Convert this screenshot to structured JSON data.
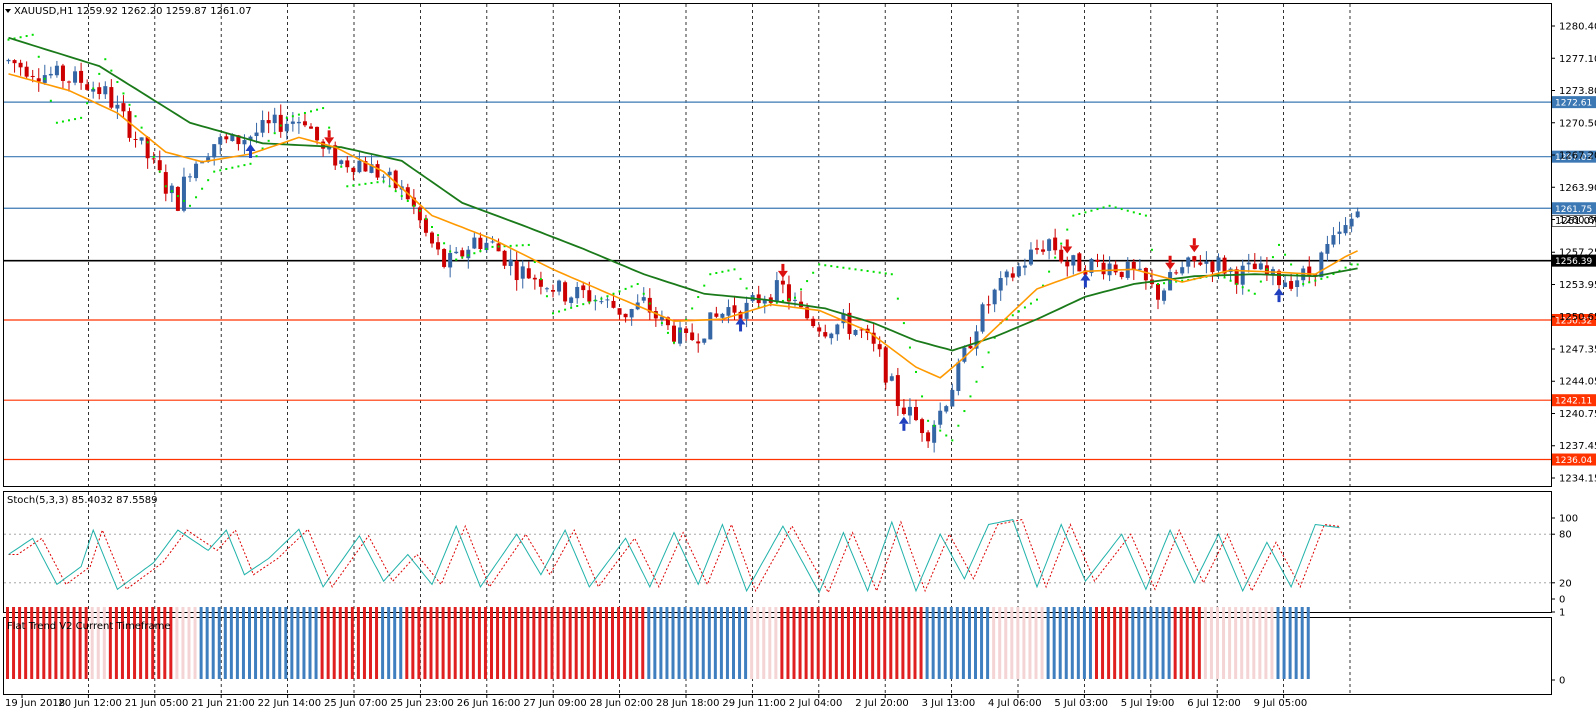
{
  "main_title": "XAUUSD,H1  1259.92 1262.20 1259.87 1261.07",
  "stoch_title": "Stoch(5,3,3) 85.4032 87.5589",
  "flat_title": "Flat Trend V2 Current Timeframe",
  "colors": {
    "bull": "#3465a4",
    "bear": "#cc0000",
    "ma_fast": "#ff9900",
    "ma_slow": "#1a7a1a",
    "sar": "#00e000",
    "stoch_main": "#20b2aa",
    "stoch_signal": "#dd0000",
    "hline_blue": "#3c78b4",
    "hline_red": "#ff3300",
    "hline_black": "#000000",
    "trend_up": "#3f7fbf",
    "trend_down": "#e02020"
  },
  "chart_data": {
    "type": "candlestick",
    "symbol": "XAUUSD",
    "timeframe": "H1",
    "current_price": "1261.07",
    "y_ticks": [
      "1280.40",
      "1277.10",
      "1273.80",
      "1270.50",
      "1267.20",
      "1263.90",
      "1260.60",
      "1257.25",
      "1253.95",
      "1250.65",
      "1247.35",
      "1244.05",
      "1240.75",
      "1237.45",
      "1234.15"
    ],
    "x_ticks": [
      "19 Jun 2018",
      "20 Jun 12:00",
      "21 Jun 05:00",
      "21 Jun 21:00",
      "22 Jun 14:00",
      "25 Jun 07:00",
      "25 Jun 23:00",
      "26 Jun 16:00",
      "27 Jun 09:00",
      "28 Jun 02:00",
      "28 Jun 18:00",
      "29 Jun 11:00",
      "2 Jul 04:00",
      "2 Jul 20:00",
      "3 Jul 13:00",
      "4 Jul 06:00",
      "5 Jul 03:00",
      "5 Jul 19:00",
      "6 Jul 12:00",
      "9 Jul 05:00"
    ],
    "levels": [
      {
        "value": 1272.61,
        "label": "1272.61",
        "kind": "blue"
      },
      {
        "value": 1267.03,
        "label": "1267.03",
        "kind": "blue"
      },
      {
        "value": 1261.75,
        "label": "1261.75",
        "kind": "blue"
      },
      {
        "value": 1256.39,
        "label": "1256.39",
        "kind": "black"
      },
      {
        "value": 1250.32,
        "label": "1250.32",
        "kind": "red"
      },
      {
        "value": 1242.11,
        "label": "1242.11",
        "kind": "red"
      },
      {
        "value": 1236.04,
        "label": "1236.04",
        "kind": "red"
      }
    ],
    "price_path": [
      [
        0,
        1276.8
      ],
      [
        6,
        1275.5
      ],
      [
        12,
        1274.8
      ],
      [
        16,
        1273.5
      ],
      [
        20,
        1270
      ],
      [
        23,
        1267
      ],
      [
        26,
        1264
      ],
      [
        28,
        1262.5
      ],
      [
        30,
        1266
      ],
      [
        34,
        1268.5
      ],
      [
        37,
        1268.5
      ],
      [
        41,
        1269.5
      ],
      [
        45,
        1270.5
      ],
      [
        49,
        1271
      ],
      [
        52,
        1267.5
      ],
      [
        55,
        1266.5
      ],
      [
        58,
        1266.5
      ],
      [
        62,
        1265
      ],
      [
        66,
        1263
      ],
      [
        69,
        1259
      ],
      [
        72,
        1256
      ],
      [
        74,
        1256.5
      ],
      [
        77,
        1258.5
      ],
      [
        80,
        1258
      ],
      [
        84,
        1255.5
      ],
      [
        88,
        1254.5
      ],
      [
        92,
        1253
      ],
      [
        95,
        1253
      ],
      [
        99,
        1252
      ],
      [
        102,
        1251
      ],
      [
        105,
        1252
      ],
      [
        108,
        1250
      ],
      [
        112,
        1248
      ],
      [
        115,
        1249.5
      ],
      [
        119,
        1251.5
      ],
      [
        122,
        1251.5
      ],
      [
        125,
        1253
      ],
      [
        128,
        1253.5
      ],
      [
        131,
        1251
      ],
      [
        135,
        1249.5
      ],
      [
        138,
        1250
      ],
      [
        141,
        1249
      ],
      [
        144,
        1246.5
      ],
      [
        147,
        1242
      ],
      [
        150,
        1240
      ],
      [
        152,
        1239
      ],
      [
        154,
        1241
      ],
      [
        157,
        1245
      ],
      [
        160,
        1250
      ],
      [
        163,
        1253
      ],
      [
        166,
        1255
      ],
      [
        169,
        1257
      ],
      [
        172,
        1258.5
      ],
      [
        175,
        1256
      ],
      [
        179,
        1256
      ],
      [
        182,
        1256
      ],
      [
        186,
        1255
      ],
      [
        190,
        1253
      ],
      [
        193,
        1255
      ],
      [
        197,
        1256.5
      ],
      [
        200,
        1256
      ],
      [
        203,
        1255
      ],
      [
        206,
        1255.5
      ],
      [
        209,
        1254.5
      ],
      [
        212,
        1254.5
      ],
      [
        215,
        1255
      ],
      [
        218,
        1257.5
      ],
      [
        221,
        1259.5
      ],
      [
        223,
        1261.5
      ]
    ],
    "ma_fast_path": [
      [
        0,
        1275.5
      ],
      [
        10,
        1273.8
      ],
      [
        18,
        1271.5
      ],
      [
        26,
        1267.5
      ],
      [
        32,
        1266.5
      ],
      [
        40,
        1267.3
      ],
      [
        48,
        1269
      ],
      [
        54,
        1268
      ],
      [
        62,
        1265.5
      ],
      [
        70,
        1261
      ],
      [
        80,
        1258.6
      ],
      [
        90,
        1255.5
      ],
      [
        100,
        1252.8
      ],
      [
        110,
        1250.2
      ],
      [
        118,
        1250.4
      ],
      [
        126,
        1251.9
      ],
      [
        134,
        1251.3
      ],
      [
        142,
        1249.2
      ],
      [
        150,
        1245.5
      ],
      [
        154,
        1244.4
      ],
      [
        158,
        1246.5
      ],
      [
        164,
        1250
      ],
      [
        170,
        1253.5
      ],
      [
        178,
        1255.3
      ],
      [
        186,
        1255.5
      ],
      [
        194,
        1254.2
      ],
      [
        202,
        1255.4
      ],
      [
        210,
        1255.2
      ],
      [
        216,
        1255
      ],
      [
        221,
        1256.8
      ],
      [
        223,
        1257.4
      ]
    ],
    "ma_slow_path": [
      [
        0,
        1279.2
      ],
      [
        15,
        1276.3
      ],
      [
        30,
        1270.5
      ],
      [
        42,
        1268.4
      ],
      [
        55,
        1268
      ],
      [
        65,
        1266.6
      ],
      [
        75,
        1262.3
      ],
      [
        85,
        1260
      ],
      [
        95,
        1257.6
      ],
      [
        105,
        1255
      ],
      [
        115,
        1253
      ],
      [
        125,
        1252.4
      ],
      [
        135,
        1251.5
      ],
      [
        143,
        1250
      ],
      [
        150,
        1248.2
      ],
      [
        156,
        1247.2
      ],
      [
        163,
        1248.6
      ],
      [
        170,
        1250.4
      ],
      [
        178,
        1252.7
      ],
      [
        186,
        1254
      ],
      [
        196,
        1254.8
      ],
      [
        206,
        1255
      ],
      [
        216,
        1254.8
      ],
      [
        223,
        1255.6
      ]
    ],
    "sar_path": [
      [
        0,
        1279
      ],
      [
        4,
        1279.5
      ],
      [
        8,
        1270.5
      ],
      [
        12,
        1271
      ],
      [
        16,
        1277
      ],
      [
        22,
        1270
      ],
      [
        26,
        1264
      ],
      [
        30,
        1262
      ],
      [
        34,
        1265.5
      ],
      [
        40,
        1266.3
      ],
      [
        46,
        1271
      ],
      [
        52,
        1272
      ],
      [
        56,
        1264
      ],
      [
        62,
        1264.5
      ],
      [
        68,
        1261.5
      ],
      [
        74,
        1256.5
      ],
      [
        80,
        1257.8
      ],
      [
        86,
        1258
      ],
      [
        90,
        1251
      ],
      [
        98,
        1252.5
      ],
      [
        104,
        1254
      ],
      [
        110,
        1248
      ],
      [
        116,
        1255
      ],
      [
        120,
        1255.5
      ],
      [
        124,
        1251.6
      ],
      [
        130,
        1252.6
      ],
      [
        134,
        1256
      ],
      [
        140,
        1255.5
      ],
      [
        146,
        1255
      ],
      [
        152,
        1240
      ],
      [
        156,
        1238
      ],
      [
        160,
        1244
      ],
      [
        164,
        1250
      ],
      [
        170,
        1252.4
      ],
      [
        176,
        1261
      ],
      [
        182,
        1262
      ],
      [
        188,
        1261
      ],
      [
        190,
        1254
      ],
      [
        196,
        1254.5
      ],
      [
        200,
        1255
      ],
      [
        206,
        1253
      ],
      [
        210,
        1258
      ],
      [
        214,
        1254
      ],
      [
        218,
        1254.7
      ],
      [
        222,
        1256
      ]
    ],
    "signals": [
      {
        "bar": 40,
        "dir": "up"
      },
      {
        "bar": 53,
        "dir": "down"
      },
      {
        "bar": 121,
        "dir": "up"
      },
      {
        "bar": 128,
        "dir": "down"
      },
      {
        "bar": 148,
        "dir": "up"
      },
      {
        "bar": 175,
        "dir": "down"
      },
      {
        "bar": 178,
        "dir": "up"
      },
      {
        "bar": 192,
        "dir": "down"
      },
      {
        "bar": 196,
        "dir": "down"
      },
      {
        "bar": 210,
        "dir": "up"
      }
    ],
    "stoch": {
      "y_ticks": [
        "100",
        "80",
        "20",
        "0"
      ],
      "main_path": [
        [
          0,
          55
        ],
        [
          4,
          75
        ],
        [
          8,
          18
        ],
        [
          12,
          40
        ],
        [
          14,
          85
        ],
        [
          18,
          12
        ],
        [
          24,
          45
        ],
        [
          28,
          85
        ],
        [
          33,
          60
        ],
        [
          36,
          85
        ],
        [
          39,
          30
        ],
        [
          43,
          50
        ],
        [
          48,
          86
        ],
        [
          52,
          15
        ],
        [
          58,
          78
        ],
        [
          62,
          22
        ],
        [
          66,
          55
        ],
        [
          70,
          18
        ],
        [
          74,
          90
        ],
        [
          78,
          15
        ],
        [
          84,
          80
        ],
        [
          88,
          30
        ],
        [
          92,
          85
        ],
        [
          96,
          15
        ],
        [
          102,
          75
        ],
        [
          106,
          15
        ],
        [
          110,
          82
        ],
        [
          114,
          18
        ],
        [
          118,
          92
        ],
        [
          122,
          10
        ],
        [
          128,
          90
        ],
        [
          134,
          8
        ],
        [
          138,
          82
        ],
        [
          142,
          10
        ],
        [
          146,
          95
        ],
        [
          150,
          10
        ],
        [
          154,
          80
        ],
        [
          158,
          25
        ],
        [
          162,
          92
        ],
        [
          166,
          98
        ],
        [
          170,
          15
        ],
        [
          174,
          92
        ],
        [
          178,
          22
        ],
        [
          184,
          80
        ],
        [
          188,
          12
        ],
        [
          192,
          85
        ],
        [
          196,
          20
        ],
        [
          200,
          80
        ],
        [
          204,
          10
        ],
        [
          208,
          70
        ],
        [
          212,
          15
        ],
        [
          216,
          92
        ],
        [
          220,
          88
        ]
      ],
      "signal_offset": 1.5
    },
    "flat_trend": [
      {
        "from": 0,
        "to": 14,
        "state": "down"
      },
      {
        "from": 14,
        "to": 17,
        "state": "flat"
      },
      {
        "from": 17,
        "to": 28,
        "state": "down"
      },
      {
        "from": 28,
        "to": 32,
        "state": "flat"
      },
      {
        "from": 32,
        "to": 52,
        "state": "up"
      },
      {
        "from": 52,
        "to": 62,
        "state": "down"
      },
      {
        "from": 62,
        "to": 66,
        "state": "up"
      },
      {
        "from": 66,
        "to": 106,
        "state": "down"
      },
      {
        "from": 106,
        "to": 123,
        "state": "up"
      },
      {
        "from": 123,
        "to": 128,
        "state": "flat"
      },
      {
        "from": 128,
        "to": 152,
        "state": "down"
      },
      {
        "from": 152,
        "to": 163,
        "state": "up"
      },
      {
        "from": 163,
        "to": 172,
        "state": "flat"
      },
      {
        "from": 172,
        "to": 180,
        "state": "up"
      },
      {
        "from": 180,
        "to": 186,
        "state": "down"
      },
      {
        "from": 186,
        "to": 193,
        "state": "up"
      },
      {
        "from": 193,
        "to": 198,
        "state": "down"
      },
      {
        "from": 198,
        "to": 210,
        "state": "flat"
      },
      {
        "from": 210,
        "to": 216,
        "state": "up"
      }
    ],
    "flat_ticks": [
      "1",
      "0"
    ]
  }
}
